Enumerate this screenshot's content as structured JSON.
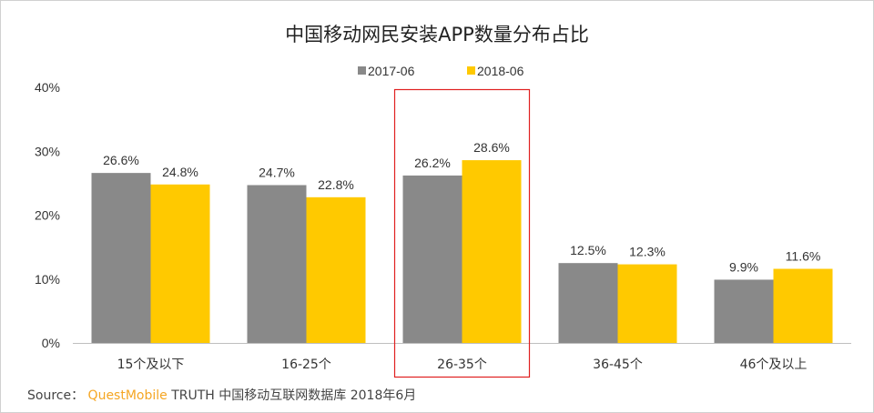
{
  "chart_data": {
    "type": "bar",
    "title": "中国移动网民安装APP数量分布占比",
    "categories": [
      "15个及以下",
      "16-25个",
      "26-35个",
      "36-45个",
      "46个及以上"
    ],
    "series": [
      {
        "name": "2017-06",
        "values": [
          26.6,
          24.7,
          26.2,
          12.5,
          9.9
        ],
        "color": "#898989"
      },
      {
        "name": "2018-06",
        "values": [
          24.8,
          22.8,
          28.6,
          12.3,
          11.6
        ],
        "color": "#ffc900"
      }
    ],
    "yticks": [
      "0%",
      "10%",
      "20%",
      "30%",
      "40%"
    ],
    "ylim": [
      0,
      40
    ],
    "unit": "%",
    "grid": false,
    "legend": "top-center",
    "highlight_category": "26-35个",
    "highlight_color": "#e02020"
  },
  "source": {
    "label": "Source：",
    "brand": "QuestMobile",
    "text": "TRUTH 中国移动互联网数据库 2018年6月"
  }
}
